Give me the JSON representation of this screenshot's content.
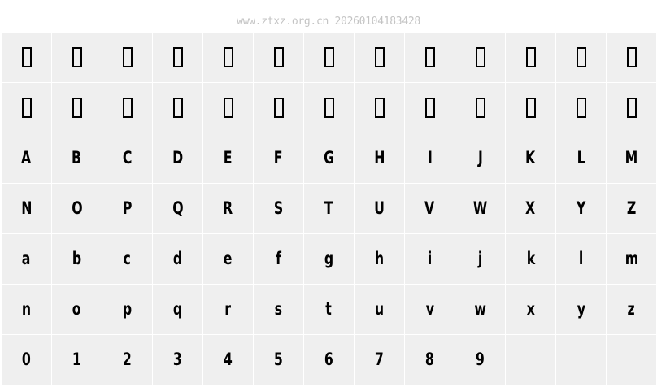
{
  "watermark": "www.ztxz.org.cn 20260104183428",
  "rows": [
    {
      "type": "tofu",
      "count": 13
    },
    {
      "type": "tofu",
      "count": 13
    },
    {
      "type": "glyph",
      "chars": [
        "A",
        "B",
        "C",
        "D",
        "E",
        "F",
        "G",
        "H",
        "I",
        "J",
        "K",
        "L",
        "M"
      ]
    },
    {
      "type": "glyph",
      "chars": [
        "N",
        "O",
        "P",
        "Q",
        "R",
        "S",
        "T",
        "U",
        "V",
        "W",
        "X",
        "Y",
        "Z"
      ]
    },
    {
      "type": "glyph",
      "chars": [
        "a",
        "b",
        "c",
        "d",
        "e",
        "f",
        "g",
        "h",
        "i",
        "j",
        "k",
        "l",
        "m"
      ]
    },
    {
      "type": "glyph",
      "chars": [
        "n",
        "o",
        "p",
        "q",
        "r",
        "s",
        "t",
        "u",
        "v",
        "w",
        "x",
        "y",
        "z"
      ]
    },
    {
      "type": "glyph",
      "chars": [
        "0",
        "1",
        "2",
        "3",
        "4",
        "5",
        "6",
        "7",
        "8",
        "9",
        "",
        "",
        ""
      ]
    }
  ]
}
